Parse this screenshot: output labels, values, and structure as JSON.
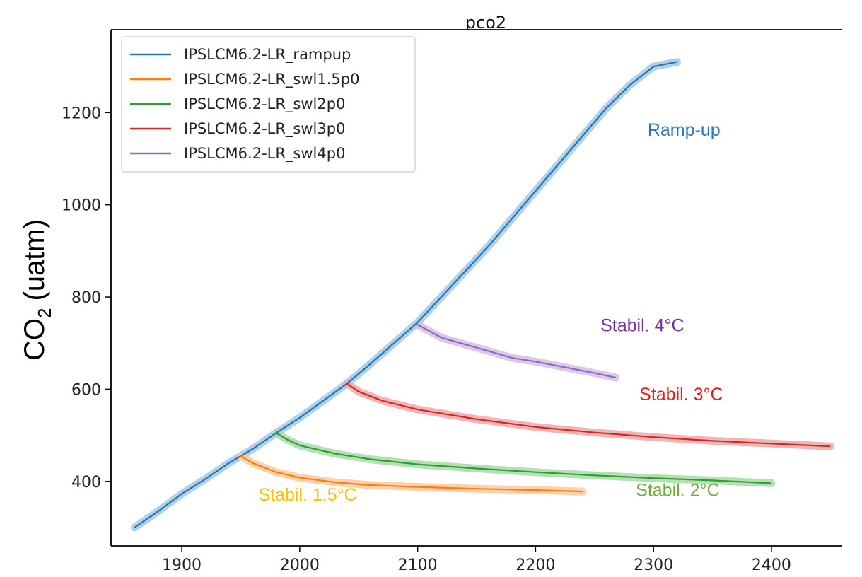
{
  "chart_data": {
    "type": "line",
    "title": "pco2",
    "ylabel_main": "CO",
    "ylabel_sub": "2",
    "ylabel_unit": "(uatm)",
    "xlabel": "",
    "xlim": [
      1840,
      2460
    ],
    "ylim": [
      260,
      1380
    ],
    "x_ticks": [
      1900,
      2000,
      2100,
      2200,
      2300,
      2400
    ],
    "y_ticks": [
      400,
      600,
      800,
      1000,
      1200
    ],
    "grid": false,
    "legend_position": "top-left",
    "series": [
      {
        "name": "IPSLCM6.2-LR_rampup",
        "color": "#1f77b4",
        "band_color": "#a6c8e6",
        "points": [
          [
            1860,
            300
          ],
          [
            1880,
            335
          ],
          [
            1900,
            373
          ],
          [
            1920,
            405
          ],
          [
            1940,
            440
          ],
          [
            1950,
            455
          ],
          [
            1960,
            470
          ],
          [
            1980,
            505
          ],
          [
            2000,
            538
          ],
          [
            2020,
            575
          ],
          [
            2040,
            612
          ],
          [
            2060,
            655
          ],
          [
            2080,
            700
          ],
          [
            2100,
            745
          ],
          [
            2120,
            800
          ],
          [
            2140,
            855
          ],
          [
            2160,
            910
          ],
          [
            2180,
            970
          ],
          [
            2200,
            1030
          ],
          [
            2220,
            1090
          ],
          [
            2240,
            1150
          ],
          [
            2260,
            1210
          ],
          [
            2280,
            1260
          ],
          [
            2300,
            1300
          ],
          [
            2320,
            1310
          ]
        ]
      },
      {
        "name": "IPSLCM6.2-LR_swl1.5p0",
        "color": "#ff7f0e",
        "band_color": "#fbc99c",
        "points": [
          [
            1950,
            455
          ],
          [
            1960,
            440
          ],
          [
            1980,
            420
          ],
          [
            2000,
            408
          ],
          [
            2030,
            398
          ],
          [
            2060,
            392
          ],
          [
            2100,
            388
          ],
          [
            2150,
            384
          ],
          [
            2200,
            381
          ],
          [
            2240,
            378
          ]
        ]
      },
      {
        "name": "IPSLCM6.2-LR_swl2p0",
        "color": "#2ca02c",
        "band_color": "#a8dba8",
        "points": [
          [
            1980,
            505
          ],
          [
            1990,
            490
          ],
          [
            2000,
            478
          ],
          [
            2030,
            460
          ],
          [
            2060,
            448
          ],
          [
            2100,
            437
          ],
          [
            2150,
            428
          ],
          [
            2200,
            420
          ],
          [
            2250,
            413
          ],
          [
            2300,
            407
          ],
          [
            2350,
            402
          ],
          [
            2400,
            396
          ]
        ]
      },
      {
        "name": "IPSLCM6.2-LR_swl3p0",
        "color": "#d62728",
        "band_color": "#eda8a8",
        "points": [
          [
            2040,
            612
          ],
          [
            2050,
            595
          ],
          [
            2070,
            575
          ],
          [
            2100,
            556
          ],
          [
            2150,
            535
          ],
          [
            2200,
            518
          ],
          [
            2250,
            506
          ],
          [
            2300,
            496
          ],
          [
            2350,
            488
          ],
          [
            2400,
            482
          ],
          [
            2450,
            476
          ]
        ]
      },
      {
        "name": "IPSLCM6.2-LR_swl4p0",
        "color": "#9467bd",
        "band_color": "#d3c0e6",
        "points": [
          [
            2100,
            740
          ],
          [
            2120,
            712
          ],
          [
            2150,
            690
          ],
          [
            2180,
            668
          ],
          [
            2200,
            660
          ],
          [
            2230,
            645
          ],
          [
            2250,
            635
          ],
          [
            2268,
            625
          ]
        ]
      }
    ],
    "annotations": [
      {
        "text": "Ramp-up",
        "x": 2295,
        "y": 1150,
        "color": "#2e78b8"
      },
      {
        "text": "Stabil. 4°C",
        "x": 2255,
        "y": 726,
        "color": "#7030a0"
      },
      {
        "text": "Stabil. 3°C",
        "x": 2288,
        "y": 576,
        "color": "#e02020"
      },
      {
        "text": "Stabil. 1.5°C",
        "x": 1965,
        "y": 358,
        "color": "#ffc000"
      },
      {
        "text": "Stabil. 2°C",
        "x": 2285,
        "y": 368,
        "color": "#70ad47"
      }
    ]
  }
}
